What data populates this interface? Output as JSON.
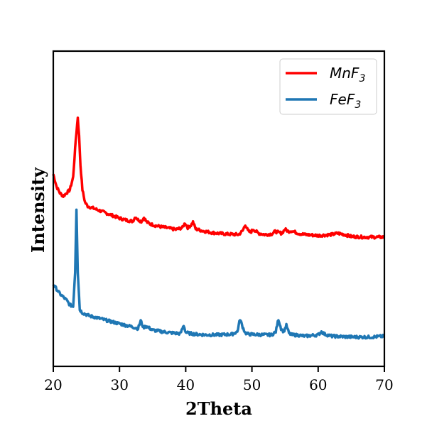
{
  "chart_data": {
    "type": "line",
    "title": "",
    "xlabel": "2Theta",
    "ylabel": "Intensity",
    "xlim": [
      20,
      70
    ],
    "ylim": [
      0,
      100
    ],
    "xticks": [
      "20",
      "30",
      "40",
      "50",
      "60",
      "70"
    ],
    "grid": false,
    "y_tick_labels_visible": false,
    "legend": {
      "position": "top-right"
    },
    "series": [
      {
        "name": "MnF3",
        "name_base": "MnF",
        "name_sub": "3",
        "color": "#ff0000",
        "x": [
          20,
          20.5,
          21,
          21.5,
          22,
          22.5,
          23,
          23.4,
          23.7,
          23.9,
          24.1,
          24.4,
          24.8,
          25.2,
          26,
          27,
          28,
          29,
          30,
          31,
          32,
          32.4,
          32.8,
          33.3,
          33.7,
          34.1,
          34.6,
          35.5,
          37,
          38.5,
          39.5,
          39.9,
          40.3,
          40.8,
          41.1,
          41.5,
          42.5,
          44,
          46,
          48,
          48.6,
          49,
          49.4,
          49.8,
          50.2,
          51,
          52,
          53,
          53.5,
          54,
          54.5,
          55,
          55.5,
          56,
          57,
          58,
          60,
          62,
          63,
          64,
          65,
          67,
          70
        ],
        "values": [
          61,
          57,
          55,
          54,
          55,
          56,
          60,
          72,
          79,
          73,
          64,
          56,
          52,
          50.8,
          50.2,
          49.4,
          48.6,
          47.8,
          47,
          46.4,
          46,
          47.5,
          46.5,
          46,
          47.2,
          45.8,
          45.2,
          44.6,
          44,
          43.4,
          44,
          45.5,
          44,
          44.8,
          45.8,
          43.6,
          43,
          42.4,
          42,
          41.8,
          43,
          45,
          43,
          42.5,
          43.5,
          42.2,
          41.8,
          42,
          42.8,
          42.5,
          42.2,
          43.5,
          42.8,
          43,
          42.2,
          41.8,
          41.5,
          41.8,
          42.2,
          41.8,
          41.2,
          41,
          41
        ]
      },
      {
        "name": "FeF3",
        "name_base": "FeF",
        "name_sub": "3",
        "color": "#1f77b4",
        "x": [
          20,
          20.5,
          21,
          21.5,
          22,
          22.5,
          23,
          23.3,
          23.5,
          23.7,
          24,
          24.4,
          24.8,
          25.5,
          26.5,
          28,
          29.5,
          31,
          32,
          32.8,
          33.2,
          33.6,
          34,
          35,
          36.5,
          38,
          39.2,
          39.7,
          40,
          40.5,
          41.5,
          43,
          45,
          47,
          47.8,
          48.2,
          48.6,
          49,
          49.5,
          50.5,
          52,
          53,
          53.6,
          54,
          54.4,
          54.8,
          55.2,
          55.6,
          56,
          57,
          58,
          60,
          60.5,
          61,
          62,
          64,
          66,
          68,
          69.5,
          70
        ],
        "values": [
          26,
          24.5,
          23,
          22,
          21,
          19.5,
          19,
          30,
          50,
          30,
          18,
          17,
          16.6,
          16,
          15.5,
          14.6,
          13.8,
          13,
          12.5,
          12,
          14.5,
          12.3,
          12.8,
          11.5,
          11,
          10.6,
          10.4,
          13,
          10.8,
          10.5,
          10.2,
          10,
          10,
          10.2,
          11,
          15,
          12.5,
          10.6,
          10.2,
          10.1,
          10,
          10,
          11,
          15,
          12,
          11,
          13,
          10.5,
          10,
          9.9,
          9.6,
          10,
          11,
          10.2,
          9.6,
          9.4,
          9.3,
          9.3,
          9.5,
          9.6
        ]
      }
    ]
  }
}
